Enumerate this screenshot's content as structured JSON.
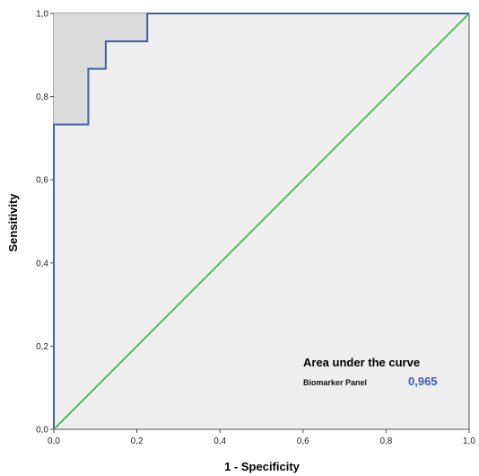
{
  "chart_data": {
    "type": "line",
    "title": "",
    "xlabel": "1 - Specificity",
    "ylabel": "Sensitivity",
    "xlim": [
      0,
      1
    ],
    "ylim": [
      0,
      1
    ],
    "x_ticks": [
      "0,0",
      "0,2",
      "0,4",
      "0,6",
      "0,8",
      "1,0"
    ],
    "y_ticks": [
      "0,0",
      "0,2",
      "0,4",
      "0,6",
      "0,8",
      "1,0"
    ],
    "grid": false,
    "series": [
      {
        "name": "Biomarker Panel",
        "color": "#3f5fa8",
        "step": true,
        "x": [
          0.0,
          0.0,
          0.083,
          0.083,
          0.125,
          0.125,
          0.225,
          0.225,
          1.0
        ],
        "y": [
          0.0,
          0.733,
          0.733,
          0.867,
          0.867,
          0.933,
          0.933,
          1.0,
          1.0
        ]
      },
      {
        "name": "",
        "color": "#2db84a",
        "step": false,
        "x": [
          0.0,
          1.0
        ],
        "y": [
          0.0,
          1.0
        ]
      }
    ],
    "annotation": {
      "title": "Area under the curve",
      "label": "Biomarker Panel",
      "value": "0,965",
      "value_color": "#3f5fa8"
    },
    "plot_background": "#eeeeee"
  }
}
